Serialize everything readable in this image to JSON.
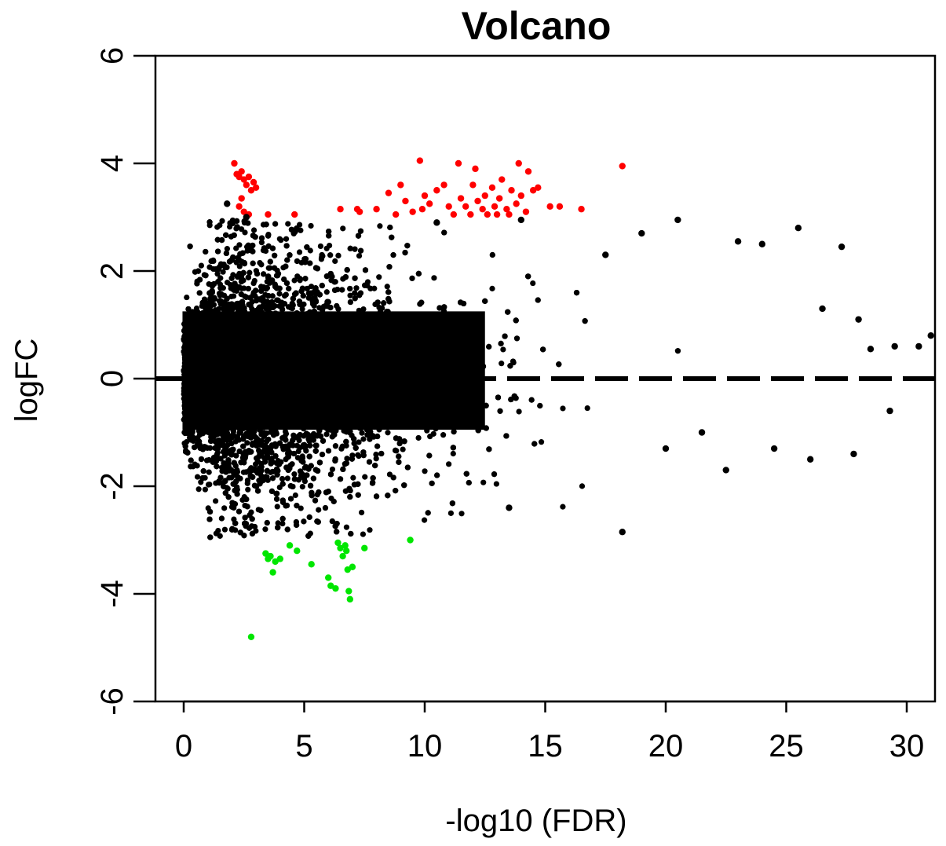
{
  "chart_data": {
    "type": "scatter",
    "title": "Volcano",
    "xlabel": "-log10 (FDR)",
    "ylabel": "logFC",
    "xlim": [
      -1.2,
      31.1
    ],
    "ylim": [
      -6,
      6
    ],
    "x_ticks": [
      0,
      5,
      10,
      15,
      20,
      25,
      30
    ],
    "y_ticks": [
      -6,
      -4,
      -2,
      0,
      2,
      4,
      6
    ],
    "x_tick_labels": [
      "0",
      "5",
      "10",
      "15",
      "20",
      "25",
      "30"
    ],
    "y_tick_labels": [
      "-6",
      "-4",
      "-2",
      "0",
      "2",
      "4",
      "6"
    ],
    "reference_line": {
      "y": 0,
      "style": "dashed"
    },
    "colors": {
      "up": "#ff0000",
      "down": "#00e600",
      "not_significant": "#000000",
      "reference": "#000000"
    },
    "series": [
      {
        "color": "#ff0000",
        "points": [
          [
            2.1,
            4.0
          ],
          [
            2.2,
            3.8
          ],
          [
            2.3,
            3.75
          ],
          [
            2.4,
            3.85
          ],
          [
            2.5,
            3.7
          ],
          [
            2.6,
            3.6
          ],
          [
            2.7,
            3.75
          ],
          [
            2.8,
            3.5
          ],
          [
            2.9,
            3.65
          ],
          [
            3.0,
            3.55
          ],
          [
            2.3,
            3.2
          ],
          [
            2.5,
            3.1
          ],
          [
            2.7,
            3.05
          ],
          [
            2.4,
            3.35
          ],
          [
            3.5,
            3.05
          ],
          [
            4.6,
            3.05
          ],
          [
            6.5,
            3.15
          ],
          [
            7.2,
            3.15
          ],
          [
            7.3,
            3.1
          ],
          [
            8.0,
            3.15
          ],
          [
            8.5,
            3.45
          ],
          [
            8.8,
            3.05
          ],
          [
            9.0,
            3.6
          ],
          [
            9.2,
            3.3
          ],
          [
            9.5,
            3.1
          ],
          [
            9.8,
            4.05
          ],
          [
            9.9,
            3.15
          ],
          [
            10.0,
            3.4
          ],
          [
            10.2,
            3.25
          ],
          [
            10.5,
            3.5
          ],
          [
            10.8,
            3.6
          ],
          [
            11.0,
            3.2
          ],
          [
            11.2,
            3.05
          ],
          [
            11.4,
            4.0
          ],
          [
            11.5,
            3.35
          ],
          [
            11.7,
            3.2
          ],
          [
            11.9,
            3.05
          ],
          [
            12.0,
            3.6
          ],
          [
            12.1,
            3.9
          ],
          [
            12.2,
            3.3
          ],
          [
            12.4,
            3.15
          ],
          [
            12.5,
            3.4
          ],
          [
            12.6,
            3.05
          ],
          [
            12.8,
            3.55
          ],
          [
            12.9,
            3.2
          ],
          [
            13.0,
            3.05
          ],
          [
            13.1,
            3.35
          ],
          [
            13.2,
            3.7
          ],
          [
            13.4,
            3.15
          ],
          [
            13.5,
            3.05
          ],
          [
            13.6,
            3.5
          ],
          [
            13.8,
            3.25
          ],
          [
            13.9,
            4.0
          ],
          [
            14.0,
            3.4
          ],
          [
            14.2,
            3.1
          ],
          [
            14.3,
            3.85
          ],
          [
            14.5,
            3.5
          ],
          [
            14.7,
            3.55
          ],
          [
            15.2,
            3.2
          ],
          [
            15.6,
            3.2
          ],
          [
            16.5,
            3.15
          ],
          [
            18.2,
            3.95
          ]
        ]
      },
      {
        "color": "#00e600",
        "points": [
          [
            2.8,
            -4.8
          ],
          [
            3.4,
            -3.25
          ],
          [
            3.5,
            -3.35
          ],
          [
            3.6,
            -3.3
          ],
          [
            3.7,
            -3.6
          ],
          [
            3.8,
            -3.4
          ],
          [
            4.0,
            -3.35
          ],
          [
            4.4,
            -3.1
          ],
          [
            4.7,
            -3.2
          ],
          [
            5.3,
            -3.45
          ],
          [
            6.0,
            -3.7
          ],
          [
            6.1,
            -3.85
          ],
          [
            6.3,
            -3.9
          ],
          [
            6.4,
            -3.05
          ],
          [
            6.5,
            -3.15
          ],
          [
            6.6,
            -3.3
          ],
          [
            6.7,
            -3.1
          ],
          [
            6.75,
            -3.2
          ],
          [
            6.8,
            -3.55
          ],
          [
            6.85,
            -3.95
          ],
          [
            6.9,
            -4.1
          ],
          [
            7.0,
            -3.5
          ],
          [
            7.5,
            -3.15
          ],
          [
            9.4,
            -3.0
          ]
        ]
      },
      {
        "color": "#000000",
        "points": [
          [
            18.2,
            -2.85
          ],
          [
            13.5,
            -2.4
          ],
          [
            20.5,
            2.95
          ],
          [
            25.5,
            2.8
          ],
          [
            27.3,
            2.45
          ],
          [
            31.0,
            0.8
          ],
          [
            29.3,
            -0.6
          ],
          [
            28.5,
            0.55
          ],
          [
            27.8,
            -1.4
          ],
          [
            26.0,
            -1.5
          ],
          [
            22.5,
            -1.7
          ],
          [
            24.5,
            -1.3
          ],
          [
            23.0,
            2.55
          ],
          [
            24.0,
            2.5
          ],
          [
            26.5,
            1.3
          ],
          [
            28.0,
            1.1
          ],
          [
            29.5,
            0.6
          ],
          [
            30.5,
            0.6
          ],
          [
            20.0,
            -1.3
          ],
          [
            21.5,
            -1.0
          ],
          [
            19.0,
            2.7
          ],
          [
            17.5,
            2.3
          ],
          [
            2.6,
            3.0
          ],
          [
            1.8,
            3.25
          ],
          [
            10.5,
            2.9
          ],
          [
            14.0,
            2.95
          ]
        ]
      }
    ]
  }
}
